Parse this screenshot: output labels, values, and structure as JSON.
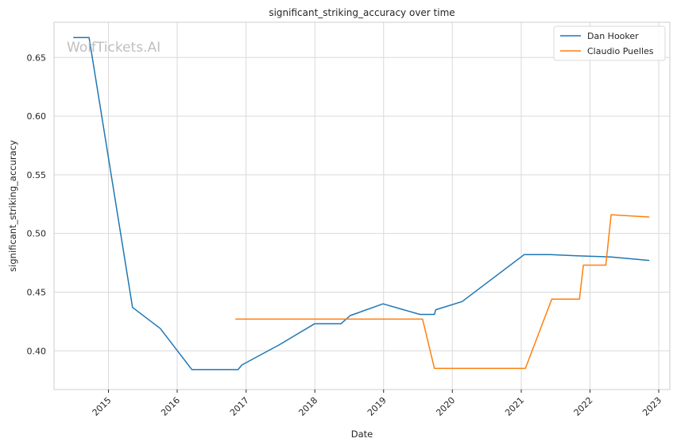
{
  "chart_data": {
    "type": "line",
    "title": "significant_striking_accuracy over time",
    "xlabel": "Date",
    "ylabel": "significant_striking_accuracy",
    "watermark": "WolfTickets.AI",
    "x_ticks": [
      "2015",
      "2016",
      "2017",
      "2018",
      "2019",
      "2020",
      "2021",
      "2022",
      "2023"
    ],
    "y_ticks": [
      "0.40",
      "0.45",
      "0.50",
      "0.55",
      "0.60",
      "0.65"
    ],
    "xlim": [
      "2014-03-18",
      "2023-03-01"
    ],
    "ylim": [
      0.367,
      0.68
    ],
    "grid": true,
    "legend_position": "top-right",
    "series": [
      {
        "name": "Dan Hooker",
        "color": "#1f77b4",
        "points": [
          [
            "2014-06-28",
            0.667
          ],
          [
            "2014-09-20",
            0.667
          ],
          [
            "2015-05-09",
            0.437
          ],
          [
            "2015-10-03",
            0.419
          ],
          [
            "2016-03-19",
            0.384
          ],
          [
            "2016-11-19",
            0.384
          ],
          [
            "2016-12-10",
            0.388
          ],
          [
            "2017-06-25",
            0.405
          ],
          [
            "2017-12-30",
            0.423
          ],
          [
            "2018-05-19",
            0.423
          ],
          [
            "2018-07-07",
            0.43
          ],
          [
            "2018-12-29",
            0.44
          ],
          [
            "2019-07-13",
            0.431
          ],
          [
            "2019-09-28",
            0.431
          ],
          [
            "2019-10-05",
            0.435
          ],
          [
            "2020-02-22",
            0.442
          ],
          [
            "2020-07-11",
            0.459
          ],
          [
            "2021-01-16",
            0.482
          ],
          [
            "2021-06-05",
            0.482
          ],
          [
            "2021-10-23",
            0.481
          ],
          [
            "2022-04-23",
            0.48
          ],
          [
            "2022-11-12",
            0.477
          ]
        ]
      },
      {
        "name": "Claudio Puelles",
        "color": "#ff7f0e",
        "points": [
          [
            "2016-11-05",
            0.427
          ],
          [
            "2019-07-27",
            0.427
          ],
          [
            "2019-09-28",
            0.385
          ],
          [
            "2021-01-23",
            0.385
          ],
          [
            "2021-06-12",
            0.444
          ],
          [
            "2021-11-06",
            0.444
          ],
          [
            "2021-11-27",
            0.473
          ],
          [
            "2022-03-26",
            0.473
          ],
          [
            "2022-04-23",
            0.516
          ],
          [
            "2022-11-12",
            0.514
          ]
        ]
      }
    ]
  }
}
